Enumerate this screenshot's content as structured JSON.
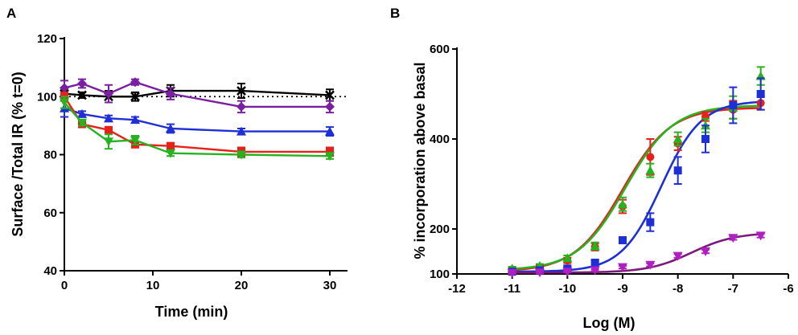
{
  "chart_data": [
    {
      "panel": "A",
      "type": "line",
      "title": "",
      "xlabel": "Time (min)",
      "ylabel": "Surface /Total IR (% t=0)",
      "xlim": [
        0,
        32
      ],
      "ylim": [
        40,
        120
      ],
      "xticks": [
        0,
        10,
        20,
        30
      ],
      "yticks": [
        40,
        60,
        80,
        100,
        120
      ],
      "reference_line": {
        "y": 100,
        "style": "dotted"
      },
      "series": [
        {
          "name": "black",
          "color": "#000000",
          "marker": "x",
          "x": [
            0,
            2,
            5,
            8,
            12,
            20,
            30
          ],
          "y": [
            101,
            100.5,
            100,
            100,
            102,
            102,
            100.5
          ],
          "err": [
            2,
            1,
            2,
            1.5,
            2,
            2.5,
            2
          ]
        },
        {
          "name": "purple",
          "color": "#7a1fa2",
          "marker": "diamond",
          "x": [
            0,
            2,
            5,
            8,
            12,
            20,
            30
          ],
          "y": [
            103,
            104.5,
            101,
            105,
            101,
            96.5,
            96.5
          ],
          "err": [
            2.5,
            1.5,
            3,
            1,
            2,
            2,
            2
          ]
        },
        {
          "name": "blue",
          "color": "#1f2fd6",
          "marker": "triangle-up",
          "x": [
            0,
            2,
            5,
            8,
            12,
            20,
            30
          ],
          "y": [
            96,
            94,
            92.5,
            92,
            89,
            88,
            88
          ],
          "err": [
            3,
            1,
            1,
            1,
            1.5,
            1,
            1.5
          ]
        },
        {
          "name": "red",
          "color": "#e8201a",
          "marker": "square",
          "x": [
            0,
            2,
            5,
            8,
            12,
            20,
            30
          ],
          "y": [
            100,
            90.5,
            88.5,
            83.5,
            83,
            81,
            81
          ],
          "err": [
            1.5,
            1,
            1,
            1,
            1,
            1.5,
            1.5
          ]
        },
        {
          "name": "green",
          "color": "#27b31f",
          "marker": "triangle-down",
          "x": [
            0,
            2,
            5,
            8,
            12,
            20,
            30
          ],
          "y": [
            98,
            91,
            84.5,
            85,
            80.5,
            80,
            79.5
          ],
          "err": [
            2,
            1,
            2.5,
            1.5,
            1,
            1,
            1
          ]
        }
      ]
    },
    {
      "panel": "B",
      "type": "scatter",
      "title": "",
      "xlabel": "Log (M)",
      "ylabel": "% incorporation  above basal",
      "xlim": [
        -12,
        -6
      ],
      "ylim": [
        100,
        600
      ],
      "xticks": [
        -12,
        -11,
        -10,
        -9,
        -8,
        -7,
        -6
      ],
      "yticks": [
        100,
        200,
        400,
        600
      ],
      "series": [
        {
          "name": "red",
          "color": "#e8201a",
          "marker": "circle",
          "x": [
            -11,
            -10.5,
            -10,
            -9.5,
            -9,
            -8.5,
            -8,
            -7.5,
            -7,
            -6.5
          ],
          "y": [
            110,
            115,
            130,
            160,
            250,
            360,
            390,
            450,
            465,
            480
          ],
          "err": [
            4,
            4,
            6,
            8,
            15,
            40,
            15,
            10,
            20,
            15
          ],
          "fit": {
            "bottom": 105,
            "top": 470,
            "log_ec50": -9.0,
            "hill": 1.0
          }
        },
        {
          "name": "green",
          "color": "#27b31f",
          "marker": "triangle-up",
          "x": [
            -11,
            -10.5,
            -10,
            -9.5,
            -9,
            -8.5,
            -8,
            -7.5,
            -7,
            -6.5
          ],
          "y": [
            112,
            118,
            135,
            162,
            255,
            330,
            400,
            430,
            470,
            540
          ],
          "err": [
            4,
            4,
            6,
            8,
            15,
            15,
            15,
            15,
            25,
            20
          ],
          "fit": {
            "bottom": 108,
            "top": 475,
            "log_ec50": -8.95,
            "hill": 1.0
          }
        },
        {
          "name": "blue",
          "color": "#1f2fd6",
          "marker": "square",
          "x": [
            -11,
            -10.5,
            -10,
            -9.5,
            -9,
            -8.5,
            -8,
            -7.5,
            -7,
            -6.5
          ],
          "y": [
            105,
            108,
            112,
            125,
            175,
            215,
            330,
            400,
            475,
            500
          ],
          "err": [
            3,
            3,
            4,
            5,
            6,
            20,
            30,
            30,
            40,
            35
          ],
          "fit": {
            "bottom": 105,
            "top": 485,
            "log_ec50": -8.3,
            "hill": 1.2
          }
        },
        {
          "name": "purple",
          "color": "#b01fc2",
          "marker": "triangle-down",
          "x": [
            -11,
            -10.5,
            -10,
            -9.5,
            -9,
            -8.5,
            -8,
            -7.5,
            -7,
            -6.5
          ],
          "y": [
            102,
            103,
            105,
            108,
            115,
            120,
            140,
            150,
            180,
            185
          ],
          "err": [
            2,
            2,
            2,
            2,
            3,
            3,
            4,
            4,
            4,
            4
          ],
          "fit": {
            "bottom": 103,
            "top": 192,
            "log_ec50": -7.75,
            "hill": 1.1,
            "color": "#7a1a7a"
          }
        }
      ]
    }
  ],
  "panels": {
    "a": {
      "letter": "A",
      "xlabel": "Time (min)",
      "ylabel": "Surface /Total IR (% t=0)"
    },
    "b": {
      "letter": "B",
      "xlabel": "Log (M)",
      "ylabel": "% incorporation  above basal"
    }
  }
}
